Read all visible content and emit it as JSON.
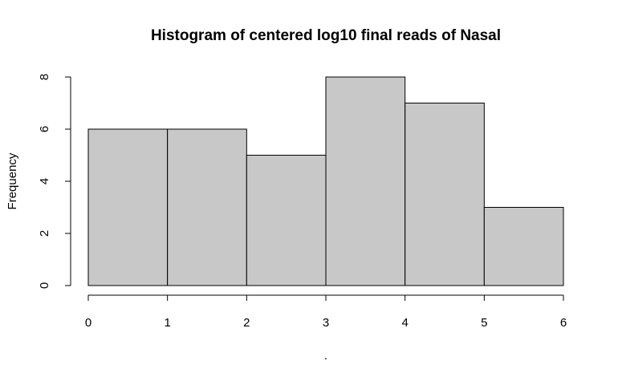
{
  "chart_data": {
    "type": "bar",
    "title": "Histogram of centered log10 final reads of Nasal",
    "xlabel": ".",
    "ylabel": "Frequency",
    "bins": [
      {
        "from": 0,
        "to": 1,
        "value": 6
      },
      {
        "from": 1,
        "to": 2,
        "value": 6
      },
      {
        "from": 2,
        "to": 3,
        "value": 5
      },
      {
        "from": 3,
        "to": 4,
        "value": 8
      },
      {
        "from": 4,
        "to": 5,
        "value": 7
      },
      {
        "from": 5,
        "to": 6,
        "value": 3
      }
    ],
    "xlim": [
      0,
      6
    ],
    "ylim": [
      0,
      8
    ],
    "x_ticks": [
      "0",
      "1",
      "2",
      "3",
      "4",
      "5",
      "6"
    ],
    "y_ticks": [
      "0",
      "2",
      "4",
      "6",
      "8"
    ],
    "bar_color": "#c8c8c8",
    "grid": false,
    "legend": "none"
  }
}
